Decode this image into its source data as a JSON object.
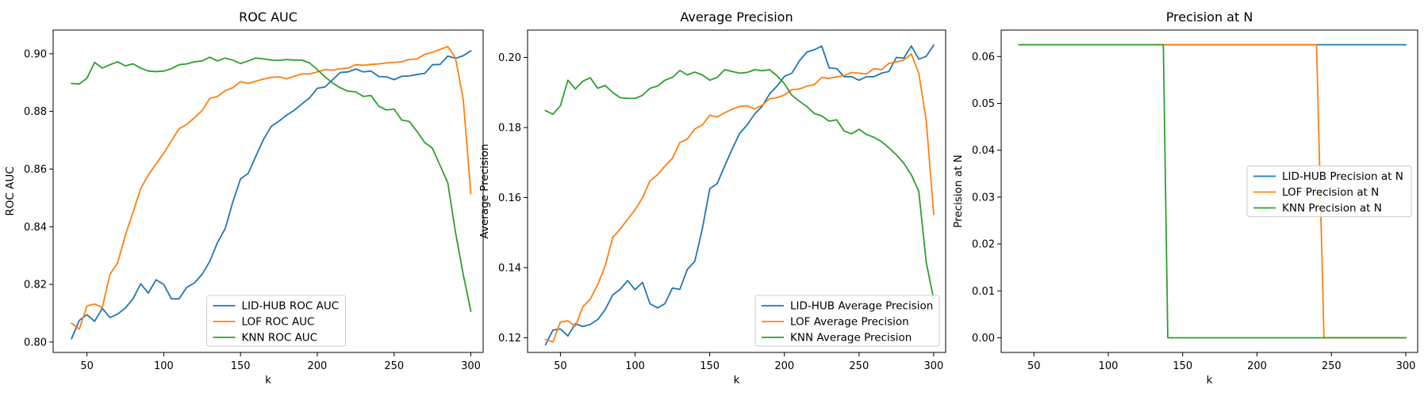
{
  "colors": {
    "lidhub": "#1f77b4",
    "lof": "#ff7f0e",
    "knn": "#2ca02c"
  },
  "chart_data": [
    {
      "type": "line",
      "title": "ROC AUC",
      "xlabel": "k",
      "ylabel": "ROC AUC",
      "xlim": [
        28,
        308
      ],
      "ylim": [
        0.7964,
        0.9082
      ],
      "xticks": [
        50,
        100,
        150,
        200,
        250,
        300
      ],
      "yticks": [
        0.8,
        0.82,
        0.84,
        0.86,
        0.88,
        0.9
      ],
      "ytick_decimals": 2,
      "legend": "lower-center",
      "x": [
        40,
        45,
        50,
        55,
        60,
        65,
        70,
        75,
        80,
        85,
        90,
        95,
        100,
        105,
        110,
        115,
        120,
        125,
        130,
        135,
        140,
        145,
        150,
        155,
        160,
        165,
        170,
        175,
        180,
        185,
        190,
        195,
        200,
        205,
        210,
        215,
        220,
        225,
        230,
        235,
        240,
        245,
        250,
        255,
        260,
        265,
        270,
        275,
        280,
        285,
        290,
        295,
        300
      ],
      "series": [
        {
          "name": "LID-HUB ROC AUC",
          "color": "#1f77b4",
          "values": [
            0.8012,
            0.8075,
            0.8095,
            0.8072,
            0.8117,
            0.8085,
            0.8097,
            0.8118,
            0.815,
            0.8202,
            0.817,
            0.8216,
            0.82,
            0.815,
            0.815,
            0.819,
            0.8205,
            0.8235,
            0.828,
            0.8345,
            0.8393,
            0.8486,
            0.8566,
            0.8585,
            0.8645,
            0.8703,
            0.8748,
            0.8766,
            0.8787,
            0.8804,
            0.8826,
            0.8847,
            0.888,
            0.8885,
            0.891,
            0.8935,
            0.8937,
            0.8947,
            0.8937,
            0.894,
            0.8921,
            0.892,
            0.891,
            0.8922,
            0.8923,
            0.8928,
            0.8932,
            0.8962,
            0.8963,
            0.8992,
            0.8984,
            0.8993,
            0.901
          ]
        },
        {
          "name": "LOF ROC AUC",
          "color": "#ff7f0e",
          "values": [
            0.8065,
            0.8045,
            0.8125,
            0.8132,
            0.812,
            0.8235,
            0.8275,
            0.837,
            0.845,
            0.8532,
            0.858,
            0.8618,
            0.8655,
            0.8698,
            0.874,
            0.8755,
            0.8778,
            0.8803,
            0.8845,
            0.8852,
            0.8872,
            0.8882,
            0.8903,
            0.8897,
            0.8905,
            0.8912,
            0.8918,
            0.892,
            0.8913,
            0.8922,
            0.893,
            0.893,
            0.8937,
            0.8945,
            0.8943,
            0.8948,
            0.895,
            0.8962,
            0.896,
            0.8963,
            0.8965,
            0.8968,
            0.897,
            0.8972,
            0.898,
            0.8982,
            0.8998,
            0.9005,
            0.9015,
            0.9025,
            0.8985,
            0.8843,
            0.8515
          ]
        },
        {
          "name": "KNN ROC AUC",
          "color": "#2ca02c",
          "values": [
            0.8897,
            0.8895,
            0.8915,
            0.897,
            0.895,
            0.8962,
            0.8972,
            0.8958,
            0.8965,
            0.895,
            0.894,
            0.8938,
            0.894,
            0.8948,
            0.8962,
            0.8965,
            0.8972,
            0.8975,
            0.8988,
            0.8975,
            0.8985,
            0.8978,
            0.8966,
            0.8975,
            0.8985,
            0.8982,
            0.8978,
            0.8977,
            0.898,
            0.8978,
            0.8978,
            0.8968,
            0.8945,
            0.892,
            0.8898,
            0.8882,
            0.887,
            0.8868,
            0.8852,
            0.8855,
            0.8818,
            0.8805,
            0.8808,
            0.877,
            0.8765,
            0.873,
            0.8692,
            0.8672,
            0.8612,
            0.8552,
            0.838,
            0.8235,
            0.8107
          ]
        }
      ]
    },
    {
      "type": "line",
      "title": "Average Precision",
      "xlabel": "k",
      "ylabel": "Average Precision",
      "xlim": [
        28,
        308
      ],
      "ylim": [
        0.1158,
        0.2078
      ],
      "xticks": [
        50,
        100,
        150,
        200,
        250,
        300
      ],
      "yticks": [
        0.12,
        0.14,
        0.16,
        0.18,
        0.2
      ],
      "ytick_decimals": 2,
      "legend": "lower-right",
      "x": [
        40,
        45,
        50,
        55,
        60,
        65,
        70,
        75,
        80,
        85,
        90,
        95,
        100,
        105,
        110,
        115,
        120,
        125,
        130,
        135,
        140,
        145,
        150,
        155,
        160,
        165,
        170,
        175,
        180,
        185,
        190,
        195,
        200,
        205,
        210,
        215,
        220,
        225,
        230,
        235,
        240,
        245,
        250,
        255,
        260,
        265,
        270,
        275,
        280,
        285,
        290,
        295,
        300
      ],
      "series": [
        {
          "name": "LID-HUB Average Precision",
          "color": "#1f77b4",
          "values": [
            0.118,
            0.1222,
            0.1225,
            0.1205,
            0.124,
            0.1232,
            0.1238,
            0.1252,
            0.128,
            0.1322,
            0.1338,
            0.1363,
            0.1337,
            0.1358,
            0.1297,
            0.1285,
            0.1297,
            0.1342,
            0.1338,
            0.1395,
            0.1418,
            0.151,
            0.1625,
            0.164,
            0.169,
            0.1738,
            0.1783,
            0.1807,
            0.1838,
            0.186,
            0.1895,
            0.1918,
            0.1946,
            0.1955,
            0.199,
            0.2015,
            0.2022,
            0.2032,
            0.197,
            0.1968,
            0.1945,
            0.1945,
            0.1935,
            0.1945,
            0.1945,
            0.1955,
            0.196,
            0.2,
            0.1998,
            0.2033,
            0.1995,
            0.2003,
            0.2035
          ]
        },
        {
          "name": "LOF Average Precision",
          "color": "#ff7f0e",
          "values": [
            0.1195,
            0.1188,
            0.1245,
            0.1248,
            0.1233,
            0.1288,
            0.131,
            0.1352,
            0.1405,
            0.1486,
            0.151,
            0.1538,
            0.1565,
            0.16,
            0.1648,
            0.1665,
            0.169,
            0.1712,
            0.1757,
            0.1767,
            0.1796,
            0.1807,
            0.1835,
            0.183,
            0.1842,
            0.1852,
            0.186,
            0.1862,
            0.1853,
            0.1863,
            0.1882,
            0.1885,
            0.1893,
            0.1908,
            0.191,
            0.1918,
            0.1922,
            0.1943,
            0.194,
            0.1945,
            0.1948,
            0.1957,
            0.1955,
            0.1953,
            0.1968,
            0.1965,
            0.1983,
            0.1987,
            0.1993,
            0.201,
            0.1955,
            0.182,
            0.1552
          ]
        },
        {
          "name": "KNN Average Precision",
          "color": "#2ca02c",
          "values": [
            0.1848,
            0.1838,
            0.1862,
            0.1935,
            0.191,
            0.1932,
            0.1942,
            0.1912,
            0.192,
            0.19,
            0.1885,
            0.1883,
            0.1883,
            0.1892,
            0.1912,
            0.1918,
            0.1935,
            0.1943,
            0.1963,
            0.195,
            0.1958,
            0.195,
            0.1935,
            0.1943,
            0.1965,
            0.196,
            0.1955,
            0.1957,
            0.1965,
            0.1962,
            0.1965,
            0.1948,
            0.1925,
            0.1892,
            0.1875,
            0.186,
            0.184,
            0.1833,
            0.1818,
            0.1822,
            0.179,
            0.1782,
            0.1795,
            0.178,
            0.1772,
            0.176,
            0.1742,
            0.1722,
            0.1698,
            0.1665,
            0.1618,
            0.1415,
            0.131
          ]
        }
      ]
    },
    {
      "type": "line",
      "title": "Precision at N",
      "xlabel": "k",
      "ylabel": "Precision at N",
      "xlim": [
        28,
        308
      ],
      "ylim": [
        -0.003125,
        0.065625
      ],
      "xticks": [
        50,
        100,
        150,
        200,
        250,
        300
      ],
      "yticks": [
        0.0,
        0.01,
        0.02,
        0.03,
        0.04,
        0.05,
        0.06
      ],
      "ytick_decimals": 2,
      "legend": "center-right",
      "x": [
        40,
        135,
        137,
        140,
        240,
        245,
        300
      ],
      "series": [
        {
          "name": "LID-HUB Precision at N",
          "color": "#1f77b4",
          "values": [
            0.0625,
            0.0625,
            0.0625,
            0.0625,
            0.0625,
            0.0625,
            0.0625
          ]
        },
        {
          "name": "LOF Precision at N",
          "color": "#ff7f0e",
          "values": [
            0.0625,
            0.0625,
            0.0625,
            0.0625,
            0.0625,
            0.0,
            0.0
          ]
        },
        {
          "name": "KNN Precision at N",
          "color": "#2ca02c",
          "values": [
            0.0625,
            0.0625,
            0.0625,
            0.0,
            0.0,
            0.0,
            0.0
          ]
        }
      ]
    }
  ]
}
